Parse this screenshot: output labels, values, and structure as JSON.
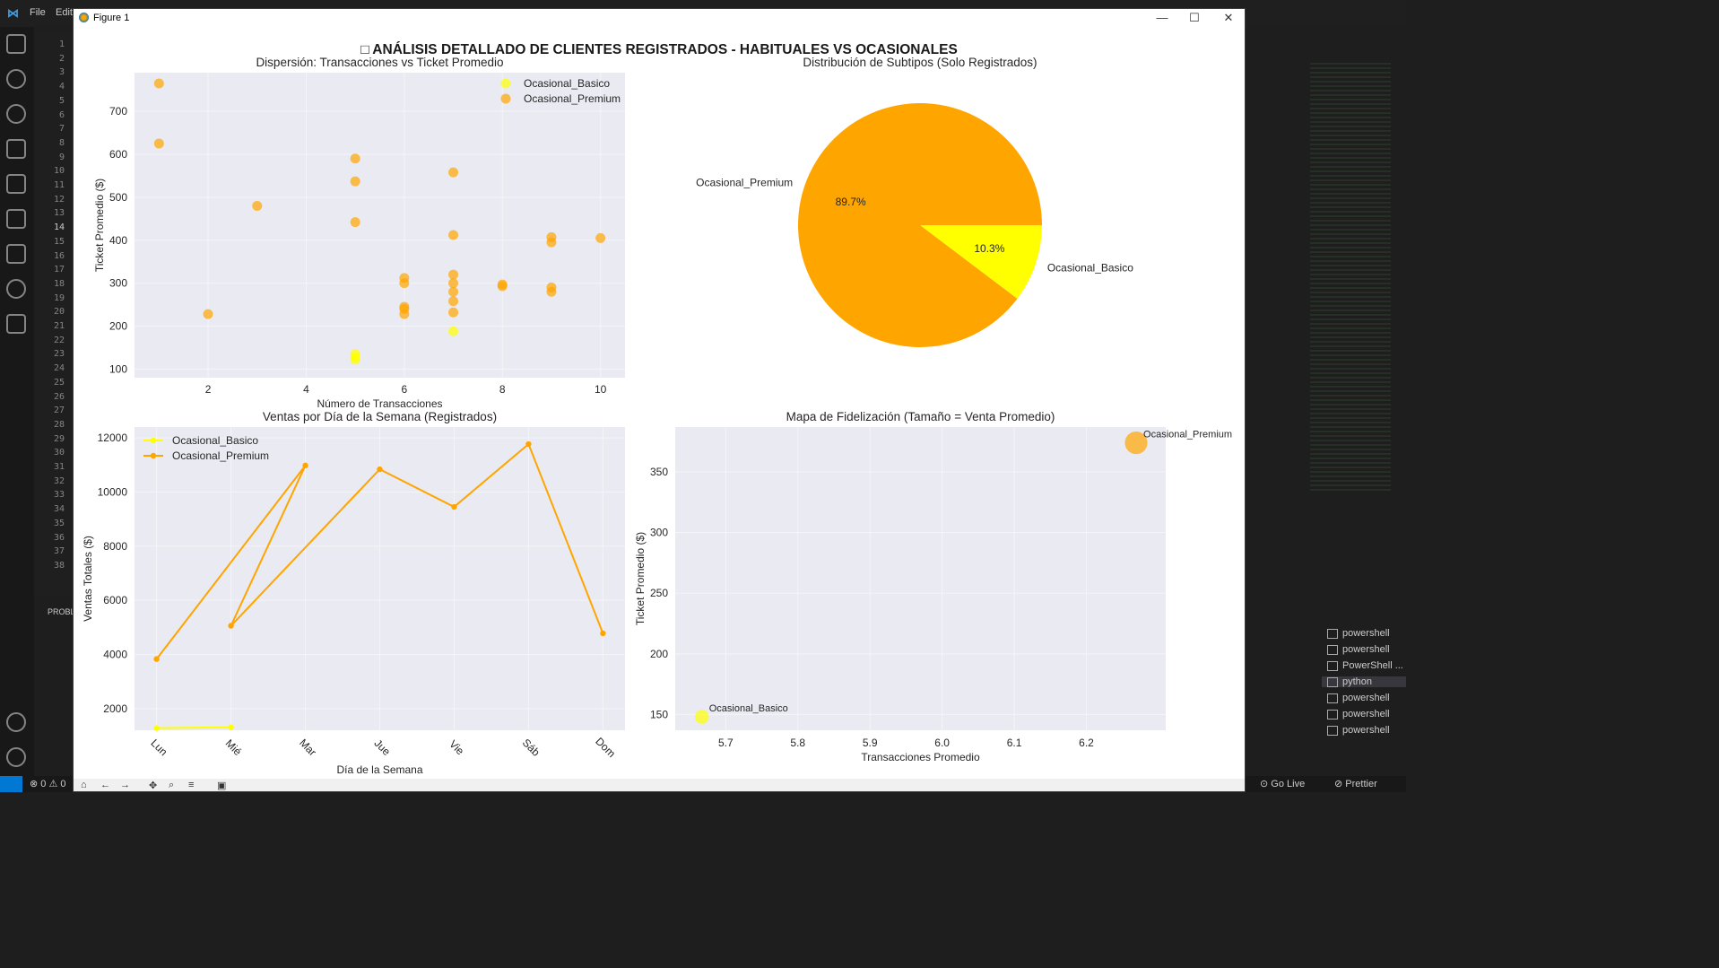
{
  "window": {
    "title": "Figure 1",
    "minimize": "—",
    "maximize": "☐",
    "close": "✕"
  },
  "vscode": {
    "menu": [
      "File",
      "Edit"
    ],
    "line_numbers": [
      1,
      2,
      3,
      4,
      5,
      6,
      7,
      8,
      9,
      10,
      11,
      12,
      13,
      14,
      15,
      16,
      17,
      18,
      19,
      20,
      21,
      22,
      23,
      24,
      25,
      26,
      27,
      28,
      29,
      30,
      31,
      32,
      33,
      34,
      35,
      36,
      37,
      38
    ],
    "current_line": 14,
    "panel_label": "PROBL",
    "terminals": [
      "powershell",
      "powershell",
      "PowerShell ...",
      "python",
      "powershell",
      "powershell",
      "powershell"
    ],
    "active_terminal": "python",
    "status": {
      "errors": "0",
      "warnings": "0",
      "go_live": "Go Live",
      "prettier": "Prettier"
    }
  },
  "suptitle": "□ ANÁLISIS DETALLADO DE CLIENTES REGISTRADOS - HABITUALES VS OCASIONALES",
  "colors": {
    "basico": "#FFFF00",
    "premium": "#FFA500",
    "axes_bg": "#EAEAF2",
    "grid": "#F4F4F8"
  },
  "chart_data": [
    {
      "type": "scatter",
      "title": "Dispersión: Transacciones vs Ticket Promedio",
      "xlabel": "Número de Transacciones",
      "ylabel": "Ticket Promedio ($)",
      "xlim": [
        0.5,
        10.5
      ],
      "ylim": [
        80,
        790
      ],
      "xticks": [
        2,
        4,
        6,
        8,
        10
      ],
      "yticks": [
        100,
        200,
        300,
        400,
        500,
        600,
        700
      ],
      "legend_position": "upper right",
      "series": [
        {
          "name": "Ocasional_Basico",
          "color": "#FFFF00",
          "points": [
            [
              5,
              135
            ],
            [
              5,
              128
            ],
            [
              5,
              122
            ],
            [
              7,
              188
            ]
          ]
        },
        {
          "name": "Ocasional_Premium",
          "color": "#FFA500",
          "points": [
            [
              1,
              765
            ],
            [
              1,
              625
            ],
            [
              2,
              228
            ],
            [
              3,
              480
            ],
            [
              5,
              590
            ],
            [
              5,
              537
            ],
            [
              5,
              442
            ],
            [
              6,
              312
            ],
            [
              6,
              300
            ],
            [
              6,
              245
            ],
            [
              6,
              240
            ],
            [
              6,
              228
            ],
            [
              7,
              558
            ],
            [
              7,
              412
            ],
            [
              7,
              320
            ],
            [
              7,
              300
            ],
            [
              7,
              280
            ],
            [
              7,
              258
            ],
            [
              7,
              232
            ],
            [
              8,
              297
            ],
            [
              8,
              293
            ],
            [
              9,
              407
            ],
            [
              9,
              395
            ],
            [
              9,
              290
            ],
            [
              9,
              280
            ],
            [
              10,
              405
            ]
          ]
        }
      ]
    },
    {
      "type": "pie",
      "title": "Distribución de Subtipos (Solo Registrados)",
      "slices": [
        {
          "label": "Ocasional_Basico",
          "value": 10.3,
          "pct_label": "10.3%",
          "color": "#FFFF00"
        },
        {
          "label": "Ocasional_Premium",
          "value": 89.7,
          "pct_label": "89.7%",
          "color": "#FFA500"
        }
      ]
    },
    {
      "type": "line",
      "title": "Ventas por Día de la Semana (Registrados)",
      "xlabel": "Día de la Semana",
      "ylabel": "Ventas Totales ($)",
      "categories": [
        "Lun",
        "Mié",
        "Mar",
        "Jue",
        "Vie",
        "Sáb",
        "Dom"
      ],
      "ylim": [
        1200,
        12400
      ],
      "yticks": [
        2000,
        4000,
        6000,
        8000,
        10000,
        12000
      ],
      "legend_position": "upper left",
      "series": [
        {
          "name": "Ocasional_Basico",
          "color": "#FFFF00",
          "points": [
            [
              "Lun",
              1280
            ],
            [
              "Mié",
              1310
            ]
          ]
        },
        {
          "name": "Ocasional_Premium",
          "color": "#FFA500",
          "points": [
            [
              "Lun",
              3830
            ],
            [
              "Mar",
              10980
            ],
            [
              "Mié",
              5060
            ],
            [
              "Jue",
              10840
            ],
            [
              "Vie",
              9450
            ],
            [
              "Sáb",
              11770
            ],
            [
              "Dom",
              4780
            ]
          ]
        }
      ]
    },
    {
      "type": "scatter",
      "title": "Mapa de Fidelización (Tamaño = Venta Promedio)",
      "xlabel": "Transacciones Promedio",
      "ylabel": "Ticket Promedio ($)",
      "xlim": [
        5.63,
        6.31
      ],
      "ylim": [
        137,
        387
      ],
      "xticks": [
        5.7,
        5.8,
        5.9,
        6.0,
        6.1,
        6.2
      ],
      "yticks": [
        150,
        200,
        250,
        300,
        350
      ],
      "points": [
        {
          "label": "Ocasional_Basico",
          "x": 5.667,
          "y": 148,
          "size": 900,
          "color": "#FFFF00"
        },
        {
          "label": "Ocasional_Premium",
          "x": 6.269,
          "y": 374,
          "size": 2350,
          "color": "#FFA500"
        }
      ]
    }
  ]
}
